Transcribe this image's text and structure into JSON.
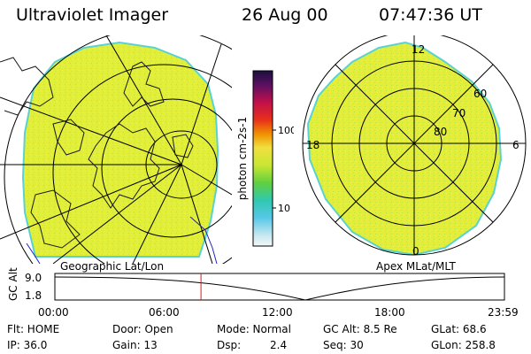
{
  "header": {
    "instrument": "Ultraviolet Imager",
    "date": "26 Aug 00",
    "time": "07:47:36 UT"
  },
  "colorbar": {
    "unit_label": "photon cm-2s-1",
    "tick_100": "100",
    "tick_10": "10"
  },
  "left_panel": {
    "caption": "Geographic Lat/Lon"
  },
  "right_panel": {
    "caption": "Apex MLat/MLT",
    "mlt_12": "12",
    "mlt_18": "18",
    "mlt_6": "6",
    "mlt_0": "0",
    "lat_60": "60",
    "lat_70": "70",
    "lat_80": "80"
  },
  "altitude_plot": {
    "ylabel": "GC Alt",
    "y_max": "9.0",
    "y_min": "1.8",
    "x_ticks": [
      "00:00",
      "06:00",
      "12:00",
      "18:00",
      "23:59"
    ],
    "current_time_fraction": 0.325
  },
  "info": {
    "filter": "Flt: HOME",
    "ip": "IP: 36.0",
    "door": "Door: Open",
    "gain": "Gain: 13",
    "mode": "Mode: Normal",
    "dsp_label": "Dsp:",
    "dsp_value": "2.4",
    "gc_alt": "GC Alt: 8.5 Re",
    "seq": "Seq: 30",
    "glat": "GLat: 68.6",
    "glon": "GLon: 258.8"
  },
  "colors": {
    "aurora_fill": "#e6f03c",
    "aurora_edge": "#5ad2d2",
    "marker": "#e01818"
  }
}
